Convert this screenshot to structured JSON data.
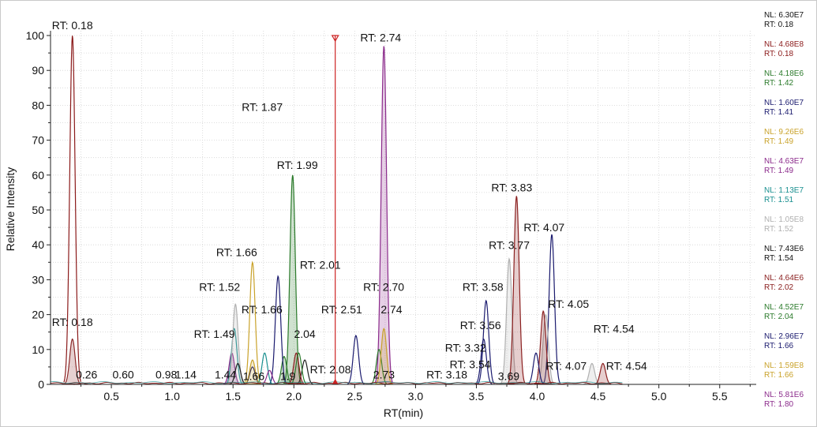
{
  "chart_data": {
    "type": "line",
    "title": "",
    "xlabel": "RT(min)",
    "ylabel": "Relative Intensity",
    "xlim": [
      0,
      5.8
    ],
    "ylim": [
      0,
      100
    ],
    "x_ticks": [
      0.5,
      1.0,
      1.5,
      2.0,
      2.5,
      3.0,
      3.5,
      4.0,
      4.5,
      5.0,
      5.5
    ],
    "x_tick_labels": [
      "0.5",
      "1.0",
      "1.5",
      "2.0",
      "2.5",
      "3.0",
      "3.5",
      "4.0",
      "4.5",
      "5.0",
      "5.5"
    ],
    "y_ticks": [
      0,
      10,
      20,
      30,
      40,
      50,
      60,
      70,
      80,
      90,
      100
    ],
    "y_tick_labels": [
      "0",
      "10",
      "20",
      "30",
      "40",
      "50",
      "60",
      "70",
      "80",
      "90",
      "100"
    ],
    "grid": true,
    "series": [
      {
        "name": "NL: 6.30E7",
        "color": "#8b1a1a",
        "fill": false,
        "peaks": [
          {
            "rt": 0.18,
            "height": 100
          },
          {
            "rt": 0.26,
            "height": 0.4
          }
        ]
      },
      {
        "name": "NL: 4.68E8",
        "color": "#8b2a2a",
        "fill": true,
        "peaks": [
          {
            "rt": 0.18,
            "height": 13
          }
        ]
      },
      {
        "name": "NL: 4.18E6",
        "color": "#2a7a2a",
        "fill": true,
        "peaks": [
          {
            "rt": 1.99,
            "height": 60
          },
          {
            "rt": 1.92,
            "height": 8
          }
        ]
      },
      {
        "name": "NL: 1.60E7",
        "color": "#1a1a6e",
        "fill": false,
        "peaks": [
          {
            "rt": 1.87,
            "height": 31
          },
          {
            "rt": 2.51,
            "height": 14
          },
          {
            "rt": 3.58,
            "height": 24
          },
          {
            "rt": 4.12,
            "height": 43
          }
        ]
      },
      {
        "name": "NL: 9.26E6",
        "color": "#c9a22a",
        "fill": false,
        "peaks": [
          {
            "rt": 1.66,
            "height": 35
          }
        ]
      },
      {
        "name": "NL: 4.63E7",
        "color": "#8b2a8b",
        "fill": true,
        "peaks": [
          {
            "rt": 2.74,
            "height": 97
          },
          {
            "rt": 1.49,
            "height": 9
          }
        ]
      },
      {
        "name": "NL: 1.13E7",
        "color": "#1a9090",
        "fill": false,
        "peaks": [
          {
            "rt": 1.51,
            "height": 16
          },
          {
            "rt": 1.76,
            "height": 9
          }
        ]
      },
      {
        "name": "NL: 1.05E8",
        "color": "#b0b0b0",
        "fill": true,
        "peaks": [
          {
            "rt": 1.52,
            "height": 23
          },
          {
            "rt": 3.77,
            "height": 36
          },
          {
            "rt": 4.07,
            "height": 20
          },
          {
            "rt": 4.45,
            "height": 6
          }
        ]
      },
      {
        "name": "NL: 7.43E6",
        "color": "#222222",
        "fill": false,
        "peaks": [
          {
            "rt": 1.54,
            "height": 6
          },
          {
            "rt": 2.09,
            "height": 7
          }
        ]
      },
      {
        "name": "NL: 4.64E6",
        "color": "#8b2020",
        "fill": true,
        "peaks": [
          {
            "rt": 2.02,
            "height": 9
          },
          {
            "rt": 3.83,
            "height": 54
          },
          {
            "rt": 4.05,
            "height": 21
          },
          {
            "rt": 4.54,
            "height": 6
          }
        ]
      },
      {
        "name": "NL: 4.52E7",
        "color": "#2a7a2a",
        "fill": false,
        "peaks": [
          {
            "rt": 2.04,
            "height": 9
          },
          {
            "rt": 2.7,
            "height": 10
          }
        ]
      },
      {
        "name": "NL: 2.96E7",
        "color": "#1a1a6e",
        "fill": false,
        "peaks": [
          {
            "rt": 1.66,
            "height": 5
          },
          {
            "rt": 3.56,
            "height": 13
          },
          {
            "rt": 3.99,
            "height": 9
          }
        ]
      },
      {
        "name": "NL: 1.59E8",
        "color": "#c9a22a",
        "fill": true,
        "peaks": [
          {
            "rt": 1.66,
            "height": 7
          },
          {
            "rt": 2.74,
            "height": 16
          }
        ]
      },
      {
        "name": "NL: 5.81E6",
        "color": "#8b2a8b",
        "fill": false,
        "peaks": [
          {
            "rt": 1.8,
            "height": 4
          }
        ]
      }
    ],
    "marker": {
      "rt": 2.34,
      "height": 100,
      "color": "#cc2222"
    },
    "annotations": [
      {
        "label": "RT: 0.18",
        "x": 0.18,
        "y": 100
      },
      {
        "label": "RT: 0.18",
        "x": 0.18,
        "y": 14
      },
      {
        "label": "RT: 2.74",
        "x": 2.74,
        "y": 97
      },
      {
        "label": "RT: 1.99",
        "x": 1.99,
        "y": 60
      },
      {
        "label": "RT: 1.87",
        "x": 1.87,
        "y": 44
      },
      {
        "label": "RT: 1.66",
        "x": 1.66,
        "y": 35
      },
      {
        "label": "RT: 2.01",
        "x": 2.01,
        "y": 34
      },
      {
        "label": "RT: 1.52",
        "x": 1.52,
        "y": 25
      },
      {
        "label": "RT: 1.66",
        "x": 1.66,
        "y": 19
      },
      {
        "label": "RT: 1.49",
        "x": 1.49,
        "y": 12
      },
      {
        "label": "2.04",
        "x": 2.04,
        "y": 12
      },
      {
        "label": "RT: 2.08",
        "x": 2.08,
        "y": 5
      },
      {
        "label": "RT: 2.70",
        "x": 2.7,
        "y": 25
      },
      {
        "label": "RT: 2.51",
        "x": 2.51,
        "y": 19
      },
      {
        "label": "2.74",
        "x": 2.74,
        "y": 19
      },
      {
        "label": "2.73",
        "x": 2.73,
        "y": 3
      },
      {
        "label": "RT: 3.18",
        "x": 3.18,
        "y": 3
      },
      {
        "label": "0.26",
        "x": 0.26,
        "y": 3
      },
      {
        "label": "0.60",
        "x": 0.6,
        "y": 3
      },
      {
        "label": "0.98",
        "x": 0.98,
        "y": 3
      },
      {
        "label": "1.14",
        "x": 1.14,
        "y": 3
      },
      {
        "label": "1.44",
        "x": 1.44,
        "y": 3
      },
      {
        "label": "1.66",
        "x": 1.66,
        "y": 3
      },
      {
        "label": "1.9",
        "x": 1.9,
        "y": 3
      },
      {
        "label": "RT: 3.83",
        "x": 3.83,
        "y": 54
      },
      {
        "label": "RT: 3.77",
        "x": 3.77,
        "y": 37
      },
      {
        "label": "RT: 4.07",
        "x": 4.07,
        "y": 43
      },
      {
        "label": "RT: 3.58",
        "x": 3.58,
        "y": 25
      },
      {
        "label": "RT: 4.05",
        "x": 4.05,
        "y": 21
      },
      {
        "label": "RT: 3.56",
        "x": 3.56,
        "y": 14
      },
      {
        "label": "RT: 3.32",
        "x": 3.32,
        "y": 13
      },
      {
        "label": "RT: 3.54",
        "x": 3.54,
        "y": 6
      },
      {
        "label": "3.69",
        "x": 3.69,
        "y": 3
      },
      {
        "label": "RT: 4.07",
        "x": 4.07,
        "y": 6
      },
      {
        "label": "RT: 4.54",
        "x": 4.54,
        "y": 13
      },
      {
        "label": "RT: 4.54",
        "x": 4.54,
        "y": 6
      }
    ]
  },
  "legend": [
    {
      "nl": "NL: 6.30E7",
      "rt": "RT: 0.18",
      "nl_color": "#111111",
      "rt_color": "#111111"
    },
    {
      "nl": "NL: 4.68E8",
      "rt": "RT: 0.18",
      "nl_color": "#8b1a1a",
      "rt_color": "#8b1a1a"
    },
    {
      "nl": "NL: 4.18E6",
      "rt": "RT: 1.42",
      "nl_color": "#2a7a2a",
      "rt_color": "#2a7a2a"
    },
    {
      "nl": "NL: 1.60E7",
      "rt": "RT: 1.41",
      "nl_color": "#1a1a6e",
      "rt_color": "#1a1a6e"
    },
    {
      "nl": "NL: 9.26E6",
      "rt": "RT: 1.49",
      "nl_color": "#c9a22a",
      "rt_color": "#c9a22a"
    },
    {
      "nl": "NL: 4.63E7",
      "rt": "RT: 1.49",
      "nl_color": "#8b2a8b",
      "rt_color": "#8b2a8b"
    },
    {
      "nl": "NL: 1.13E7",
      "rt": "RT: 1.51",
      "nl_color": "#1a9090",
      "rt_color": "#1a9090"
    },
    {
      "nl": "NL: 1.05E8",
      "rt": "RT: 1.52",
      "nl_color": "#b0b0b0",
      "rt_color": "#b0b0b0"
    },
    {
      "nl": "NL: 7.43E6",
      "rt": "RT: 1.54",
      "nl_color": "#111111",
      "rt_color": "#111111"
    },
    {
      "nl": "NL: 4.64E6",
      "rt": "RT: 2.02",
      "nl_color": "#8b2020",
      "rt_color": "#8b2020"
    },
    {
      "nl": "NL: 4.52E7",
      "rt": "RT: 2.04",
      "nl_color": "#2a7a2a",
      "rt_color": "#2a7a2a"
    },
    {
      "nl": "NL: 2.96E7",
      "rt": "RT: 1.66",
      "nl_color": "#1a1a6e",
      "rt_color": "#1a1a6e"
    },
    {
      "nl": "NL: 1.59E8",
      "rt": "RT: 1.66",
      "nl_color": "#c9a22a",
      "rt_color": "#c9a22a"
    },
    {
      "nl": "NL: 5.81E6",
      "rt": "RT: 1.80",
      "nl_color": "#8b2a8b",
      "rt_color": "#8b2a8b"
    }
  ]
}
